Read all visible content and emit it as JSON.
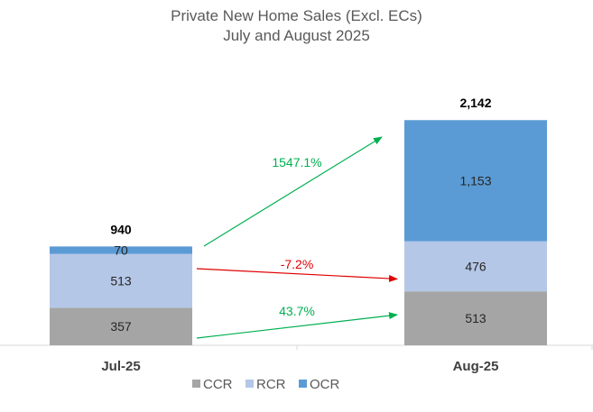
{
  "chart_data": {
    "type": "bar",
    "stacked": true,
    "title": "Private New Home Sales (Excl. ECs)",
    "subtitle": "July and August 2025",
    "categories": [
      "Jul-25",
      "Aug-25"
    ],
    "series": [
      {
        "name": "CCR",
        "values": [
          357,
          513
        ],
        "color": "#a5a5a5"
      },
      {
        "name": "RCR",
        "values": [
          513,
          476
        ],
        "color": "#b4c7e7"
      },
      {
        "name": "OCR",
        "values": [
          70,
          1153
        ],
        "color": "#5b9bd5"
      }
    ],
    "value_labels": [
      [
        "357",
        "513"
      ],
      [
        "513",
        "476"
      ],
      [
        "70",
        "1,153"
      ]
    ],
    "totals": [
      "940",
      "2,142"
    ],
    "changes": [
      {
        "series": "CCR",
        "label": "43.7%",
        "color": "#00b050"
      },
      {
        "series": "RCR",
        "label": "-7.2%",
        "color": "#e00000"
      },
      {
        "series": "OCR",
        "label": "1547.1%",
        "color": "#00b050"
      }
    ],
    "legend": {
      "position": "bottom",
      "items": [
        "CCR",
        "RCR",
        "OCR"
      ]
    },
    "ylim": [
      0,
      2500
    ],
    "grid": false
  }
}
